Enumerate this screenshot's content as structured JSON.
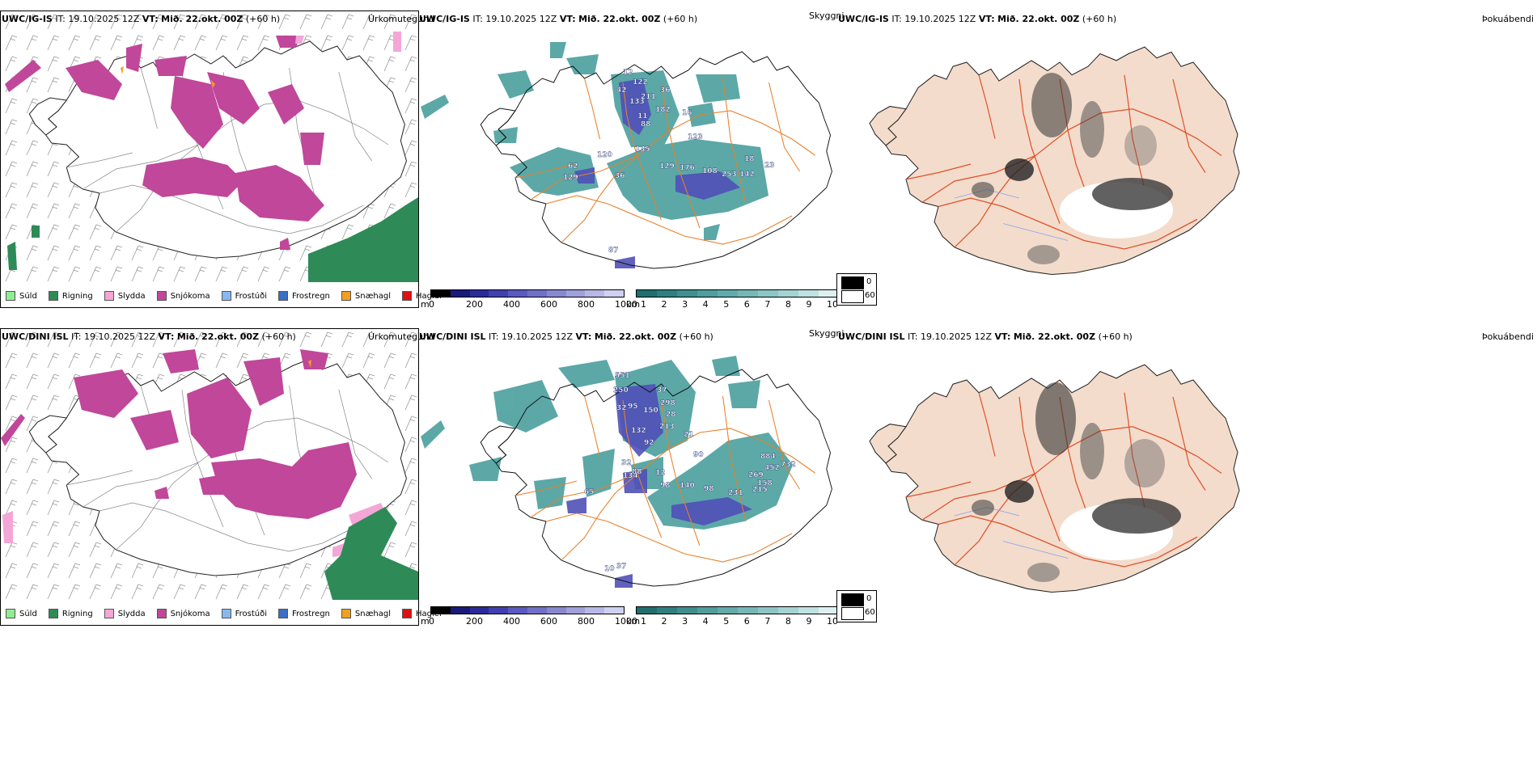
{
  "rows": [
    {
      "model": "UWC/IG-IS",
      "it_label": "IT:",
      "it_value": "19.10.2025 12Z",
      "vt_label": "VT:",
      "vt_value": "Mið. 22.okt. 00Z",
      "lead": "(+60 h)",
      "vis_labels": [
        "12",
        "122",
        "42",
        "133",
        "211",
        "182",
        "36",
        "11",
        "88",
        "123",
        "135",
        "120",
        "62",
        "129",
        "36",
        "129",
        "176",
        "108",
        "253",
        "142",
        "18",
        "23",
        "16",
        "87"
      ]
    },
    {
      "model": "UWC/DINI ISL",
      "it_label": "IT:",
      "it_value": "19.10.2025 12Z",
      "vt_label": "VT:",
      "vt_value": "Mið. 22.okt. 00Z",
      "lead": "(+60 h)",
      "vis_labels": [
        "551",
        "250",
        "37",
        "298",
        "32",
        "95",
        "150",
        "213",
        "132",
        "92",
        "28",
        "21",
        "90",
        "32",
        "134",
        "88",
        "12",
        "65",
        "98",
        "140",
        "98",
        "231",
        "215",
        "269",
        "884",
        "452",
        "732",
        "158",
        "10",
        "37"
      ]
    }
  ],
  "panel_titles": {
    "precip_type": "Úrkomutegund",
    "visibility": "Skyggni",
    "fog": "Þokuábendi"
  },
  "precip_legend": [
    {
      "label": "Súld",
      "color": "#90ee90"
    },
    {
      "label": "Rigning",
      "color": "#2e8b57"
    },
    {
      "label": "Slydda",
      "color": "#f4a6d7"
    },
    {
      "label": "Snjókoma",
      "color": "#c0479a"
    },
    {
      "label": "Frostúði",
      "color": "#87b8f0"
    },
    {
      "label": "Frostregn",
      "color": "#3a6fc4"
    },
    {
      "label": "Snæhagl",
      "color": "#f0a020"
    },
    {
      "label": "Haglél",
      "color": "#e01010"
    }
  ],
  "height_bar": {
    "unit": "m",
    "ticks": [
      "0",
      "200",
      "400",
      "600",
      "800",
      "1000"
    ],
    "colors": [
      "#000000",
      "#1a1a7a",
      "#2b2b9a",
      "#4040b0",
      "#5a5ac0",
      "#7070c8",
      "#8888d0",
      "#a0a0dc",
      "#b8b8e6",
      "#d0d0f0"
    ]
  },
  "visibility_bar": {
    "unit": "km",
    "ticks": [
      "1",
      "2",
      "3",
      "4",
      "5",
      "6",
      "7",
      "8",
      "9",
      "10"
    ],
    "colors": [
      "#1f6f6f",
      "#2e8080",
      "#3f8f8f",
      "#509e9e",
      "#62abab",
      "#76b8b8",
      "#8cc5c5",
      "#a4d3d3",
      "#bfe1e1",
      "#ddf0f0"
    ]
  },
  "fog_legend": {
    "high": "0",
    "low": "60"
  },
  "colors": {
    "snow": "#c0479a",
    "rain": "#2e8b57",
    "sleet": "#f4a6d7",
    "teal": "#3f9a98",
    "road": "#e8802a",
    "fog_land": "#f3dccb",
    "fog_road": "#e0502a",
    "river": "#8aa0f0"
  }
}
